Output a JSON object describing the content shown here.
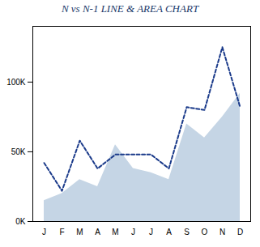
{
  "chart_data": {
    "type": "line",
    "title": "N vs N-1 LINE & AREA CHART",
    "categories": [
      "J",
      "F",
      "M",
      "A",
      "M",
      "J",
      "J",
      "A",
      "S",
      "O",
      "N",
      "D"
    ],
    "series": [
      {
        "type": "area",
        "color": "#c5d5e5",
        "values": [
          15000,
          20000,
          30000,
          25000,
          55000,
          38000,
          35000,
          30000,
          70000,
          60000,
          75000,
          92000
        ]
      },
      {
        "type": "line",
        "color": "#1a3a8a",
        "line_style": "dashed",
        "values": [
          42000,
          22000,
          58000,
          38000,
          48000,
          48000,
          48000,
          38000,
          82000,
          80000,
          125000,
          82000
        ]
      }
    ],
    "ylim": [
      0,
      140000
    ],
    "yticks": [
      {
        "value": 0,
        "label": "0K"
      },
      {
        "value": 50000,
        "label": "50K"
      },
      {
        "value": 100000,
        "label": "100K"
      }
    ],
    "grid": false
  }
}
